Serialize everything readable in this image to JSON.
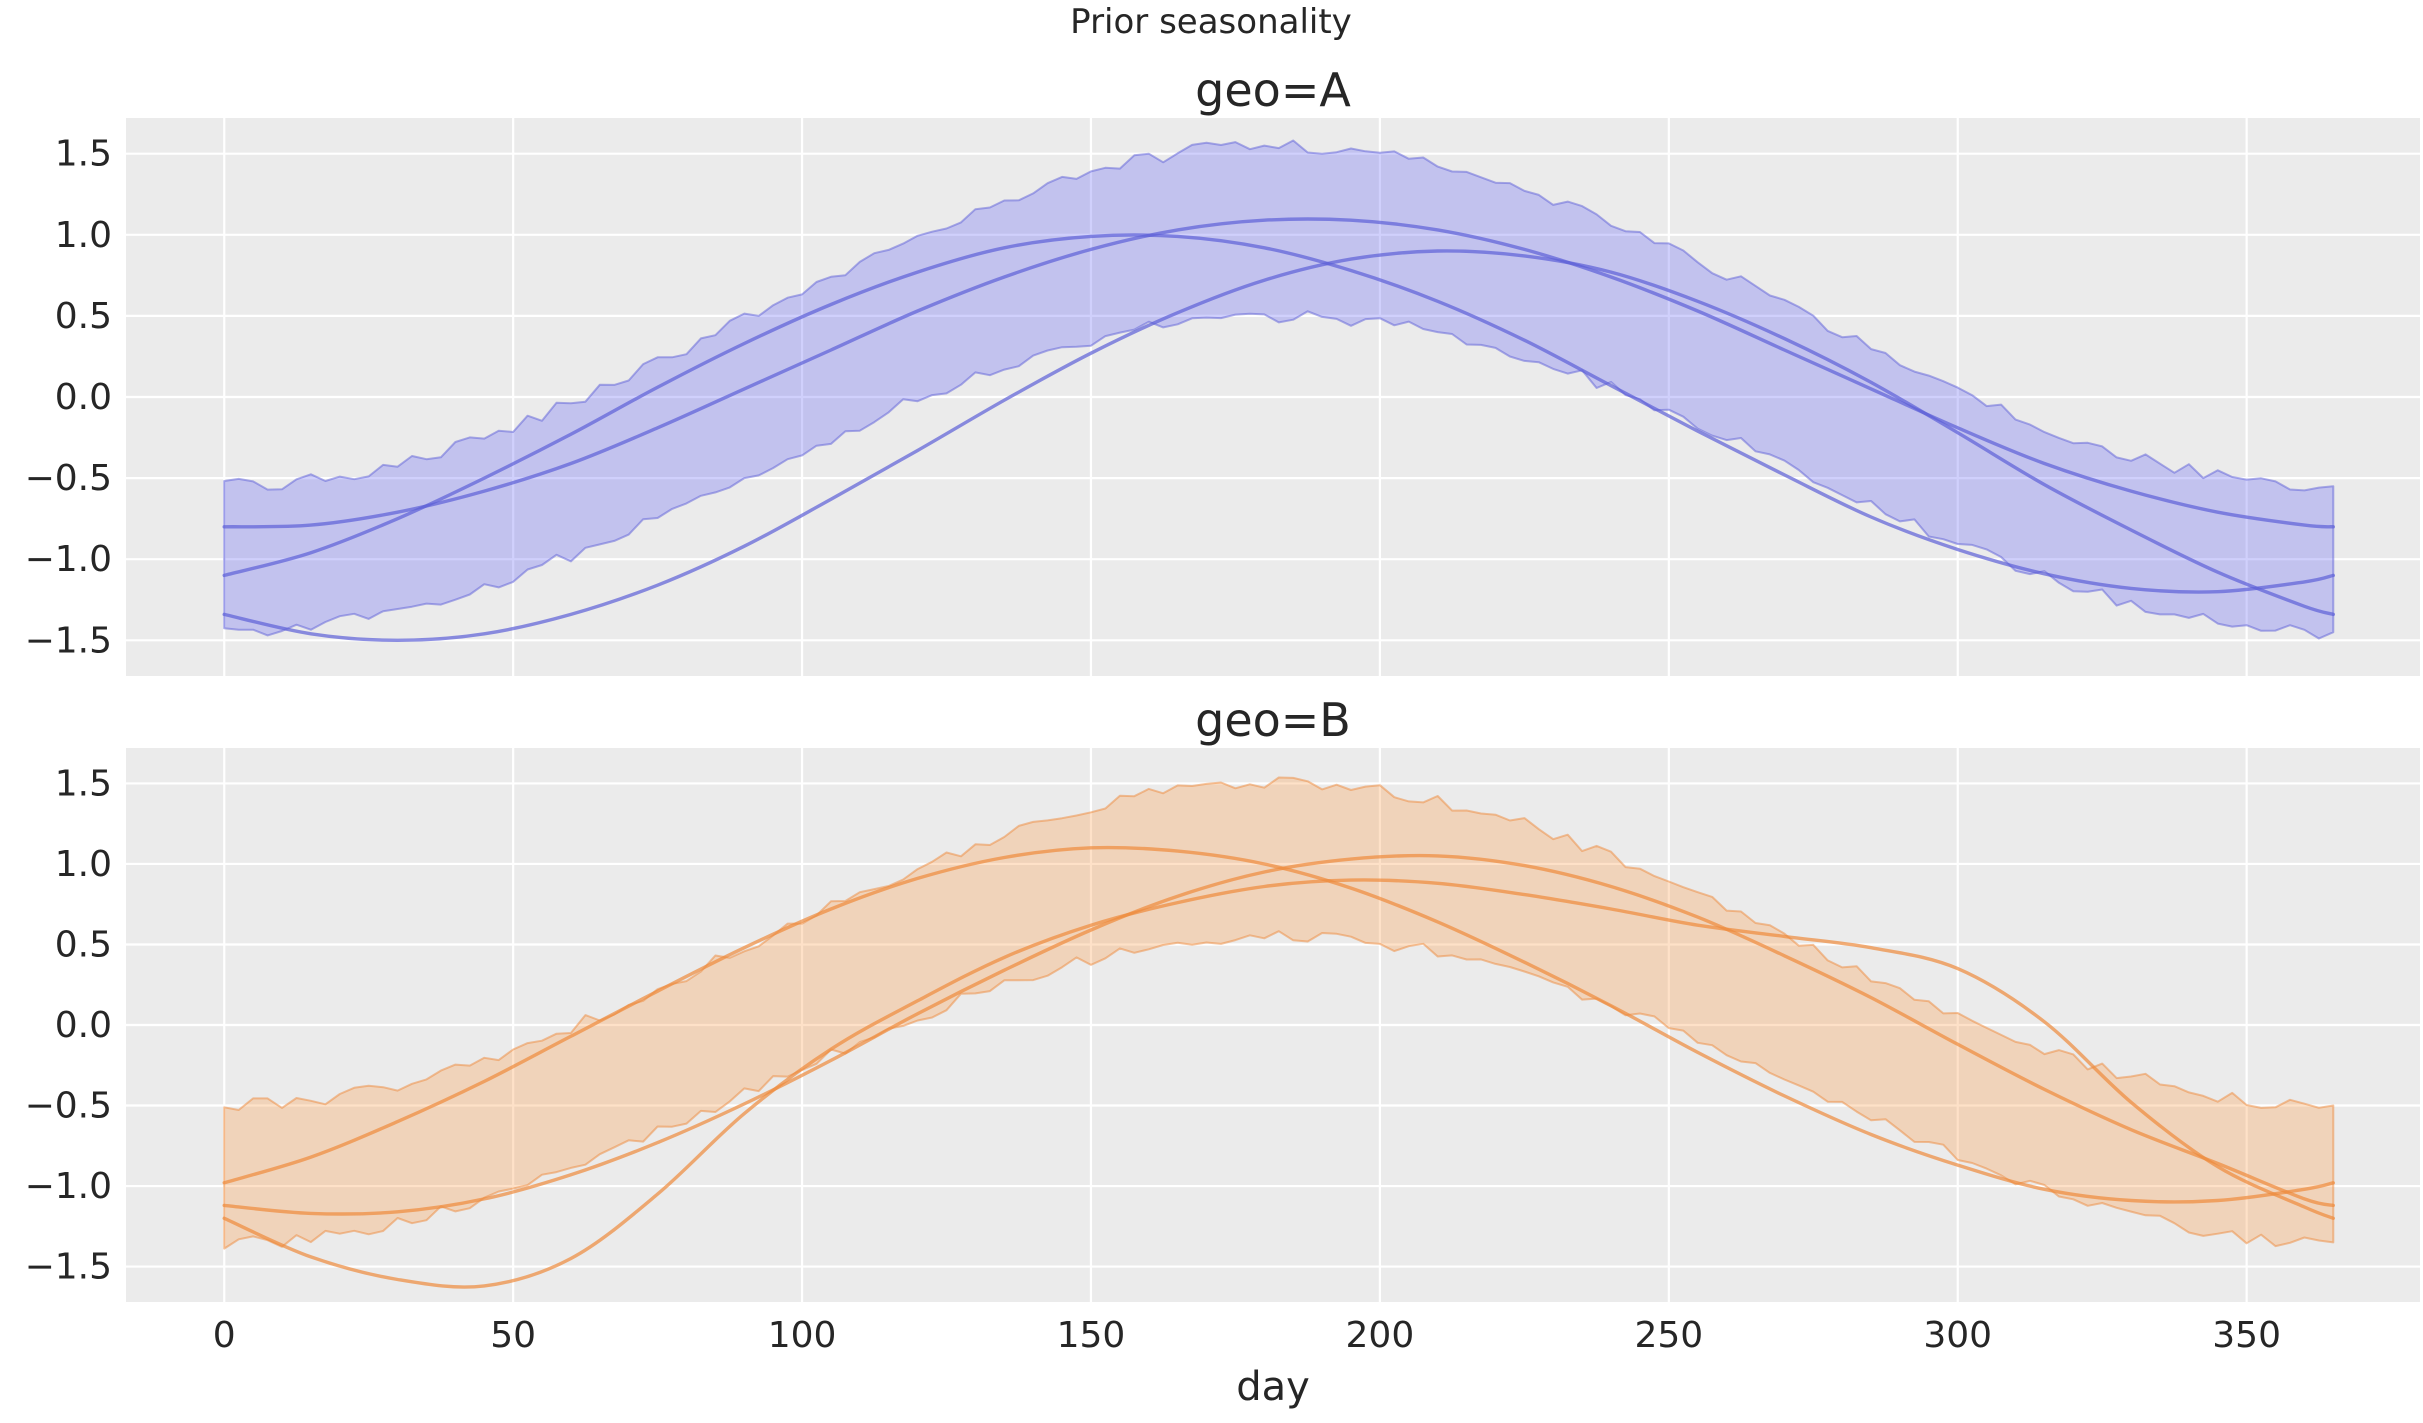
{
  "figure": {
    "suptitle": "Prior seasonality",
    "xlabel": "day",
    "plot_background": "#ebebeb",
    "grid_color": "#ffffff",
    "text_color": "#262626"
  },
  "axes": {
    "xlim": [
      -17,
      380
    ],
    "ylim": [
      -1.72,
      1.72
    ],
    "x_ticks": [
      0,
      50,
      100,
      150,
      200,
      250,
      300,
      350
    ],
    "y_ticks": [
      1.5,
      1.0,
      0.5,
      0.0,
      -0.5,
      -1.0,
      -1.5
    ],
    "grid": true,
    "legend": "none"
  },
  "chart_data": [
    {
      "type": "line",
      "title": "geo=A",
      "colors": {
        "line": "#5d5fd7",
        "fill": "#6464f5"
      },
      "line_opacity": 0.7,
      "fill_opacity": 0.3,
      "edge_noise": 0.04,
      "x": [
        0,
        15,
        30,
        45,
        60,
        75,
        90,
        105,
        120,
        135,
        150,
        165,
        180,
        195,
        210,
        225,
        240,
        255,
        270,
        285,
        300,
        315,
        330,
        345,
        360,
        365
      ],
      "samples": [
        [
          -0.8,
          -0.79,
          -0.71,
          -0.58,
          -0.41,
          -0.19,
          0.05,
          0.29,
          0.53,
          0.74,
          0.91,
          1.03,
          1.09,
          1.09,
          1.03,
          0.91,
          0.74,
          0.53,
          0.29,
          0.05,
          -0.19,
          -0.41,
          -0.58,
          -0.71,
          -0.79,
          -0.8
        ],
        [
          -1.1,
          -0.96,
          -0.75,
          -0.5,
          -0.23,
          0.06,
          0.33,
          0.57,
          0.77,
          0.92,
          0.99,
          0.99,
          0.92,
          0.78,
          0.59,
          0.35,
          0.07,
          -0.21,
          -0.48,
          -0.74,
          -0.94,
          -1.09,
          -1.18,
          -1.2,
          -1.14,
          -1.1
        ],
        [
          -1.34,
          -1.46,
          -1.5,
          -1.46,
          -1.34,
          -1.16,
          -0.92,
          -0.63,
          -0.33,
          -0.02,
          0.27,
          0.52,
          0.72,
          0.85,
          0.9,
          0.87,
          0.77,
          0.59,
          0.36,
          0.09,
          -0.22,
          -0.54,
          -0.82,
          -1.08,
          -1.29,
          -1.34
        ]
      ],
      "band": {
        "x": [
          0,
          10,
          20,
          30,
          40,
          50,
          60,
          70,
          80,
          90,
          100,
          110,
          120,
          130,
          140,
          150,
          160,
          170,
          180,
          190,
          200,
          210,
          220,
          230,
          240,
          250,
          260,
          270,
          280,
          290,
          300,
          310,
          320,
          330,
          340,
          350,
          360,
          365
        ],
        "upper": [
          -0.55,
          -0.53,
          -0.49,
          -0.41,
          -0.31,
          -0.18,
          -0.04,
          0.13,
          0.3,
          0.48,
          0.66,
          0.83,
          1.0,
          1.15,
          1.28,
          1.39,
          1.47,
          1.53,
          1.55,
          1.54,
          1.5,
          1.43,
          1.34,
          1.22,
          1.08,
          0.92,
          0.75,
          0.57,
          0.39,
          0.21,
          0.04,
          -0.11,
          -0.25,
          -0.37,
          -0.45,
          -0.52,
          -0.55,
          -0.55
        ],
        "lower": [
          -1.45,
          -1.44,
          -1.39,
          -1.32,
          -1.23,
          -1.11,
          -0.98,
          -0.82,
          -0.66,
          -0.5,
          -0.33,
          -0.17,
          -0.01,
          0.13,
          0.25,
          0.35,
          0.43,
          0.48,
          0.5,
          0.49,
          0.46,
          0.39,
          0.3,
          0.19,
          0.06,
          -0.09,
          -0.25,
          -0.41,
          -0.58,
          -0.74,
          -0.9,
          -1.05,
          -1.17,
          -1.28,
          -1.36,
          -1.42,
          -1.45,
          -1.45
        ]
      }
    },
    {
      "type": "line",
      "title": "geo=B",
      "colors": {
        "line": "#ee8a3c",
        "fill": "#fb9a4a"
      },
      "line_opacity": 0.7,
      "fill_opacity": 0.3,
      "edge_noise": 0.04,
      "x": [
        0,
        15,
        30,
        45,
        60,
        75,
        90,
        105,
        120,
        135,
        150,
        165,
        180,
        195,
        210,
        225,
        240,
        255,
        270,
        285,
        300,
        315,
        330,
        345,
        360,
        365
      ],
      "samples": [
        [
          -0.98,
          -0.82,
          -0.6,
          -0.35,
          -0.07,
          0.21,
          0.48,
          0.72,
          0.91,
          1.04,
          1.1,
          1.08,
          1.0,
          0.85,
          0.64,
          0.39,
          0.12,
          -0.17,
          -0.44,
          -0.68,
          -0.87,
          -1.02,
          -1.09,
          -1.09,
          -1.02,
          -0.98
        ],
        [
          -1.12,
          -1.17,
          -1.16,
          -1.08,
          -0.93,
          -0.73,
          -0.49,
          -0.22,
          0.07,
          0.34,
          0.59,
          0.8,
          0.95,
          1.03,
          1.05,
          0.99,
          0.86,
          0.67,
          0.43,
          0.17,
          -0.12,
          -0.4,
          -0.65,
          -0.86,
          -1.08,
          -1.12
        ],
        [
          -1.2,
          -1.44,
          -1.58,
          -1.62,
          -1.45,
          -1.05,
          -0.55,
          -0.15,
          0.15,
          0.42,
          0.62,
          0.76,
          0.86,
          0.9,
          0.88,
          0.81,
          0.72,
          0.62,
          0.55,
          0.48,
          0.35,
          0.02,
          -0.48,
          -0.88,
          -1.13,
          -1.2
        ]
      ],
      "band": {
        "x": [
          0,
          10,
          20,
          30,
          40,
          50,
          60,
          70,
          80,
          90,
          100,
          110,
          120,
          130,
          140,
          150,
          160,
          170,
          180,
          190,
          200,
          210,
          220,
          230,
          240,
          250,
          260,
          270,
          280,
          290,
          300,
          310,
          320,
          330,
          340,
          350,
          360,
          365
        ],
        "upper": [
          -0.5,
          -0.49,
          -0.44,
          -0.37,
          -0.27,
          -0.15,
          -0.01,
          0.14,
          0.31,
          0.48,
          0.65,
          0.82,
          0.98,
          1.12,
          1.24,
          1.35,
          1.43,
          1.48,
          1.5,
          1.49,
          1.46,
          1.39,
          1.3,
          1.19,
          1.05,
          0.9,
          0.74,
          0.57,
          0.39,
          0.22,
          0.06,
          -0.09,
          -0.21,
          -0.32,
          -0.41,
          -0.47,
          -0.5,
          -0.5
        ],
        "lower": [
          -1.35,
          -1.34,
          -1.29,
          -1.23,
          -1.13,
          -1.02,
          -0.89,
          -0.74,
          -0.58,
          -0.42,
          -0.26,
          -0.1,
          0.05,
          0.19,
          0.3,
          0.41,
          0.48,
          0.53,
          0.55,
          0.54,
          0.51,
          0.45,
          0.36,
          0.25,
          0.12,
          -0.02,
          -0.18,
          -0.34,
          -0.5,
          -0.66,
          -0.81,
          -0.96,
          -1.08,
          -1.18,
          -1.26,
          -1.32,
          -1.35,
          -1.35
        ]
      }
    }
  ]
}
